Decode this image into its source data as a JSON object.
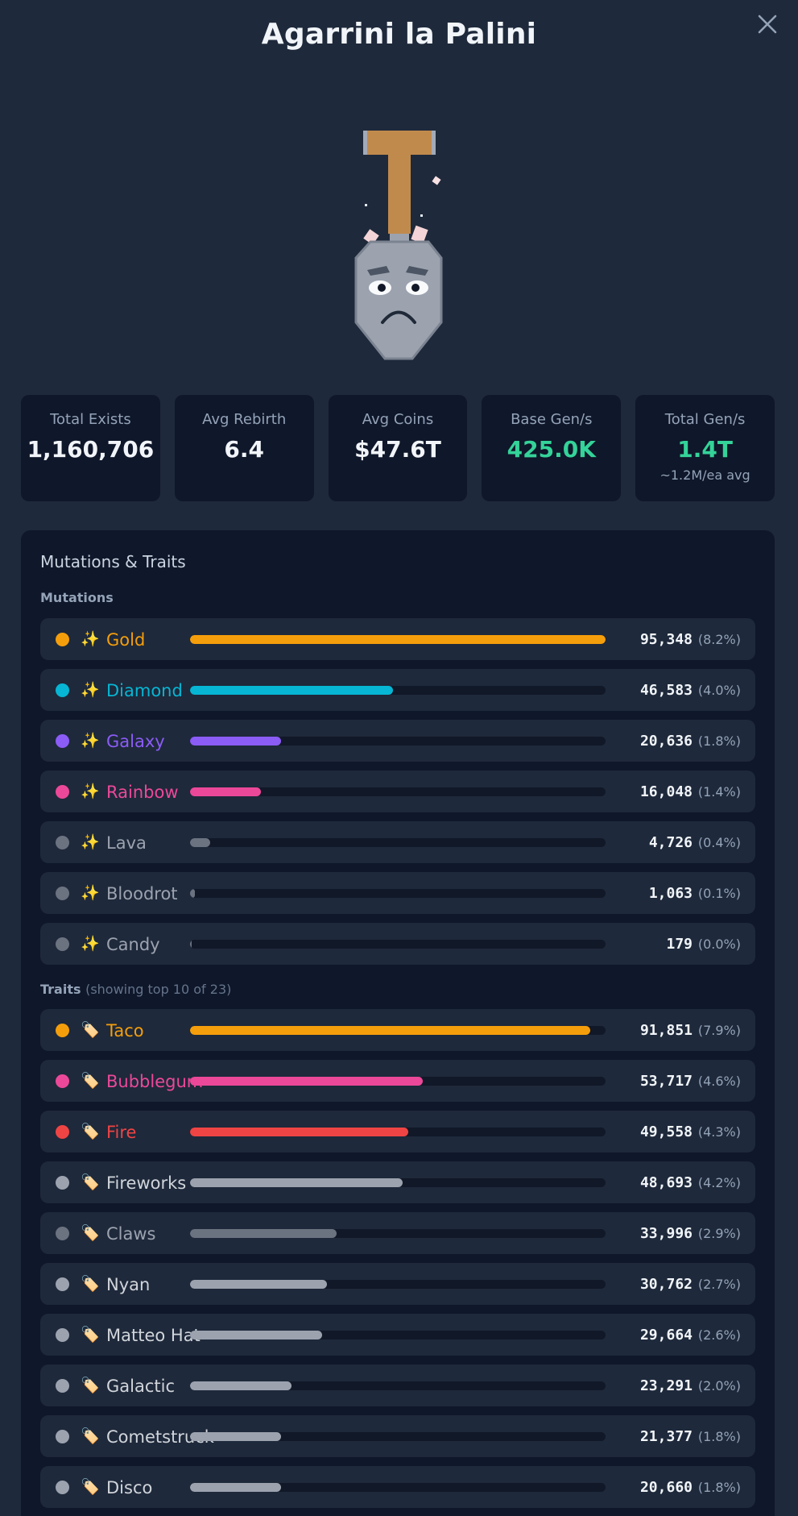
{
  "title": "Agarrini la Palini",
  "stats": [
    {
      "label": "Total Exists",
      "value": "1,160,706",
      "sub": "",
      "green": false
    },
    {
      "label": "Avg Rebirth",
      "value": "6.4",
      "sub": "",
      "green": false
    },
    {
      "label": "Avg Coins",
      "value": "$47.6T",
      "sub": "",
      "green": false
    },
    {
      "label": "Base Gen/s",
      "value": "425.0K",
      "sub": "",
      "green": true
    },
    {
      "label": "Total Gen/s",
      "value": "1.4T",
      "sub": "~1.2M/ea avg",
      "green": true
    }
  ],
  "panel": {
    "title": "Mutations & Traits",
    "mutations_label": "Mutations",
    "traits_label": "Traits",
    "traits_note": "(showing top 10 of 23)"
  },
  "icons": {
    "mutation": "sparkles-icon",
    "trait": "tag-icon",
    "close": "close-icon",
    "hero": "shovel-character-image"
  },
  "mutations": [
    {
      "name": "Gold",
      "count": "95,348",
      "pct": "(8.2%)",
      "fraction": 0.082,
      "color": "#f59e0b",
      "dot": "#f59e0b",
      "label_color": "#f59e0b"
    },
    {
      "name": "Diamond",
      "count": "46,583",
      "pct": "(4.0%)",
      "fraction": 0.04,
      "color": "#06b6d4",
      "dot": "#06b6d4",
      "label_color": "#06b6d4"
    },
    {
      "name": "Galaxy",
      "count": "20,636",
      "pct": "(1.8%)",
      "fraction": 0.018,
      "color": "#8b5cf6",
      "dot": "#8b5cf6",
      "label_color": "#8b5cf6"
    },
    {
      "name": "Rainbow",
      "count": "16,048",
      "pct": "(1.4%)",
      "fraction": 0.014,
      "color": "#ec4899",
      "dot": "#ec4899",
      "label_color": "#ec4899"
    },
    {
      "name": "Lava",
      "count": "4,726",
      "pct": "(0.4%)",
      "fraction": 0.004,
      "color": "#6b7280",
      "dot": "#6b7280",
      "label_color": "#9ca3af"
    },
    {
      "name": "Bloodrot",
      "count": "1,063",
      "pct": "(0.1%)",
      "fraction": 0.001,
      "color": "#6b7280",
      "dot": "#6b7280",
      "label_color": "#9ca3af"
    },
    {
      "name": "Candy",
      "count": "179",
      "pct": "(0.0%)",
      "fraction": 0.0002,
      "color": "#6b7280",
      "dot": "#6b7280",
      "label_color": "#9ca3af"
    }
  ],
  "traits": [
    {
      "name": "Taco",
      "count": "91,851",
      "pct": "(7.9%)",
      "fraction": 0.079,
      "color": "#f59e0b",
      "dot": "#f59e0b",
      "label_color": "#f59e0b"
    },
    {
      "name": "Bubblegum",
      "count": "53,717",
      "pct": "(4.6%)",
      "fraction": 0.046,
      "color": "#ec4899",
      "dot": "#ec4899",
      "label_color": "#ec4899"
    },
    {
      "name": "Fire",
      "count": "49,558",
      "pct": "(4.3%)",
      "fraction": 0.043,
      "color": "#ef4444",
      "dot": "#ef4444",
      "label_color": "#ef4444"
    },
    {
      "name": "Fireworks",
      "count": "48,693",
      "pct": "(4.2%)",
      "fraction": 0.042,
      "color": "#9ca3af",
      "dot": "#9ca3af",
      "label_color": "#d1d5db"
    },
    {
      "name": "Claws",
      "count": "33,996",
      "pct": "(2.9%)",
      "fraction": 0.029,
      "color": "#6b7280",
      "dot": "#6b7280",
      "label_color": "#9ca3af"
    },
    {
      "name": "Nyan",
      "count": "30,762",
      "pct": "(2.7%)",
      "fraction": 0.027,
      "color": "#9ca3af",
      "dot": "#9ca3af",
      "label_color": "#d1d5db"
    },
    {
      "name": "Matteo Hat",
      "count": "29,664",
      "pct": "(2.6%)",
      "fraction": 0.026,
      "color": "#9ca3af",
      "dot": "#9ca3af",
      "label_color": "#d1d5db"
    },
    {
      "name": "Galactic",
      "count": "23,291",
      "pct": "(2.0%)",
      "fraction": 0.02,
      "color": "#9ca3af",
      "dot": "#9ca3af",
      "label_color": "#d1d5db"
    },
    {
      "name": "Cometstruck",
      "count": "21,377",
      "pct": "(1.8%)",
      "fraction": 0.018,
      "color": "#9ca3af",
      "dot": "#9ca3af",
      "label_color": "#d1d5db"
    },
    {
      "name": "Disco",
      "count": "20,660",
      "pct": "(1.8%)",
      "fraction": 0.018,
      "color": "#9ca3af",
      "dot": "#9ca3af",
      "label_color": "#d1d5db"
    }
  ]
}
